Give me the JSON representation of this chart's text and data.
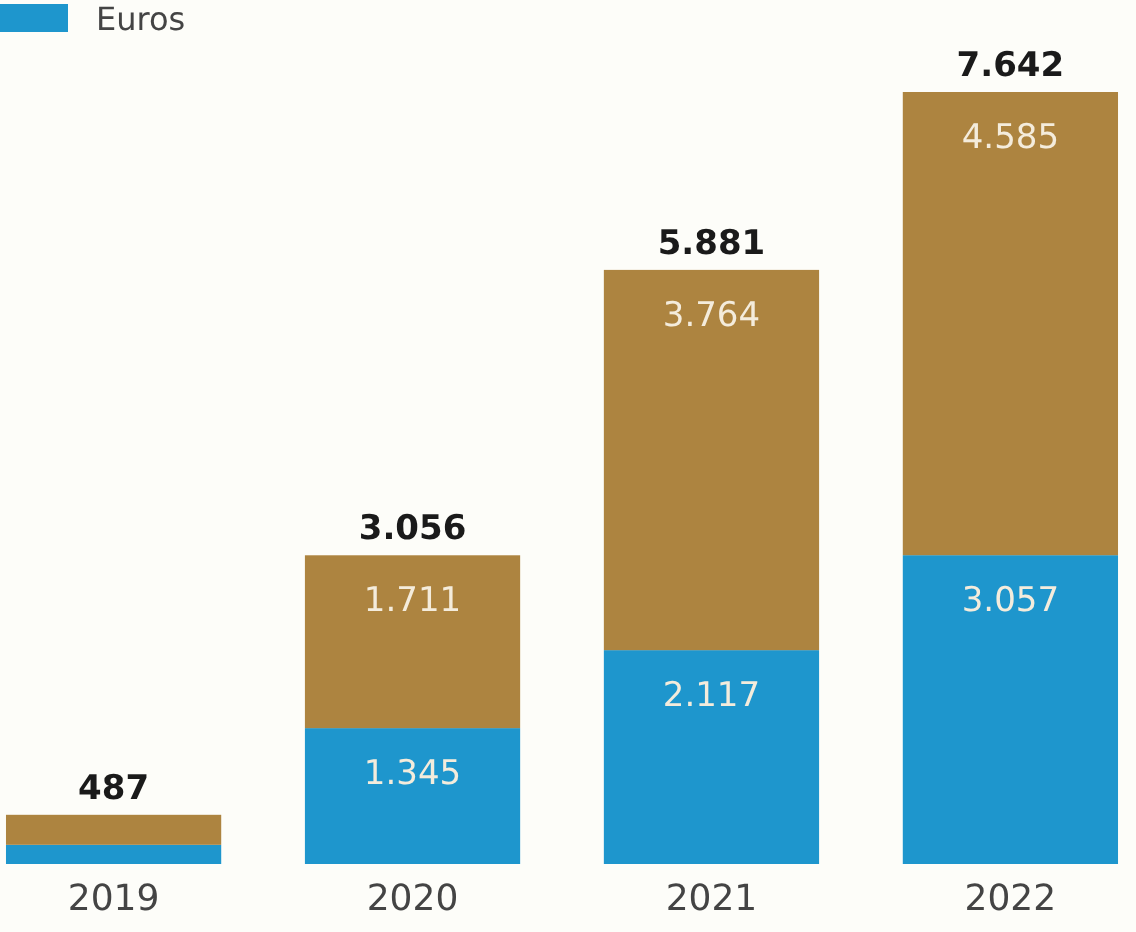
{
  "chart_data": {
    "type": "bar",
    "stacked": true,
    "categories": [
      "2019",
      "2020",
      "2021",
      "2022"
    ],
    "series": [
      {
        "name": "Euros",
        "color": "#1e96cd",
        "values": [
          190,
          1345,
          2117,
          3057
        ],
        "value_labels": [
          null,
          "1.345",
          "2.117",
          "3.057"
        ]
      },
      {
        "color": "#ad8440",
        "values": [
          297,
          1711,
          3764,
          4585
        ],
        "value_labels": [
          null,
          "1.711",
          "3.764",
          "4.585"
        ]
      }
    ],
    "totals": [
      "487",
      "3.056",
      "5.881",
      "7.642"
    ],
    "legend": "top left"
  }
}
